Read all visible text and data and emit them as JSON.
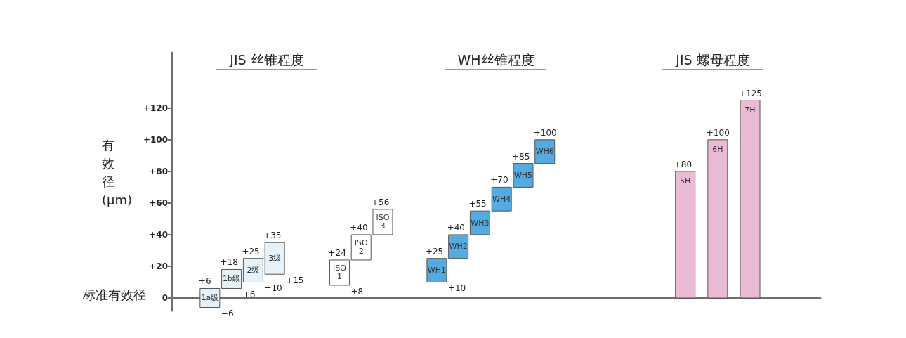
{
  "chart_data": {
    "type": "bar",
    "ylabel": "有效径\n(μm)",
    "categories": [
      null,
      null,
      null,
      "1a级",
      null,
      "1b级",
      null,
      "2级",
      null,
      "3级",
      null,
      null,
      null,
      null,
      null,
      "ISO\n1",
      null,
      "ISO\n2",
      null,
      "ISO\n3",
      null,
      null,
      null,
      null,
      "WH1",
      null,
      "WH2",
      null,
      "WH3",
      null,
      "WH4",
      null,
      "WH5",
      null,
      "WH6",
      null,
      null,
      null,
      null,
      null,
      null,
      null,
      null,
      null,
      null,
      null,
      null,
      "5H",
      null,
      null,
      "6H",
      null,
      null,
      "7H",
      null,
      null,
      null,
      null,
      null,
      null
    ],
    "values": [
      null,
      null,
      null,
      12,
      null,
      12,
      null,
      15,
      null,
      20,
      null,
      null,
      null,
      null,
      null,
      16,
      null,
      16,
      null,
      16,
      null,
      null,
      null,
      null,
      15,
      null,
      15,
      null,
      15,
      null,
      15,
      null,
      15,
      null,
      15,
      null,
      null,
      null,
      null,
      null,
      null,
      null,
      null,
      null,
      null,
      null,
      null,
      80,
      null,
      null,
      100,
      null,
      null,
      125,
      null,
      null,
      null,
      null,
      null,
      null
    ],
    "base": [
      null,
      null,
      null,
      -6,
      null,
      6,
      null,
      10,
      null,
      15,
      null,
      null,
      null,
      null,
      null,
      8,
      null,
      24,
      null,
      40,
      null,
      null,
      null,
      null,
      10,
      null,
      25,
      null,
      40,
      null,
      55,
      null,
      70,
      null,
      85,
      null,
      null,
      null,
      null,
      null,
      null,
      null,
      null,
      null,
      null,
      null,
      null,
      0,
      null,
      null,
      0,
      null,
      null,
      0,
      null,
      null,
      null,
      null,
      null,
      null
    ],
    "colors": [
      null,
      null,
      null,
      "#e6f2fa",
      null,
      "#e6f2fa",
      null,
      "#e6f2fa",
      null,
      "#e6f2fa",
      null,
      null,
      null,
      null,
      null,
      "#ffffff",
      null,
      "#ffffff",
      null,
      "#ffffff",
      null,
      null,
      null,
      null,
      "#55abe0",
      null,
      "#55abe0",
      null,
      "#55abe0",
      null,
      "#55abe0",
      null,
      "#55abe0",
      null,
      "#55abe0",
      null,
      null,
      null,
      null,
      null,
      null,
      null,
      null,
      null,
      null,
      null,
      null,
      "#ebbbd6",
      null,
      null,
      "#ebbbd6",
      null,
      null,
      "#ebbbd6",
      null,
      null,
      null,
      null,
      null,
      null
    ],
    "ylim": [
      -8,
      155
    ],
    "yticks": [
      0,
      {
        "value": 20,
        "label": "+20"
      },
      {
        "value": 40,
        "label": "+40"
      },
      {
        "value": 60,
        "label": "+60"
      },
      {
        "value": 80,
        "label": "+80"
      },
      {
        "value": 100,
        "label": "+100"
      },
      {
        "value": 120,
        "label": "+120"
      }
    ],
    "tick_labels": "y",
    "grid": false,
    "annotations": [
      "JIS 丝锥程度",
      "WH丝锥程度",
      "JIS 螺母程度",
      "标准有效径",
      {
        "text": "+6",
        "x": "1a级",
        "y": 6
      },
      {
        "text": "−6",
        "x": "1a级",
        "y": -6
      },
      {
        "text": "+18",
        "x": "1b级",
        "y": 18
      },
      {
        "text": "+6",
        "x": "1b级",
        "y": 6
      },
      {
        "text": "+25",
        "x": "2级",
        "y": 25
      },
      {
        "text": "+10",
        "x": "2级",
        "y": 10
      },
      {
        "text": "+35",
        "x": "3级",
        "y": 35
      },
      {
        "text": "+15",
        "x": "3级",
        "y": 15
      },
      {
        "text": "+24",
        "x": "ISO\n1",
        "y": 24
      },
      {
        "text": "+8",
        "x": "ISO\n1",
        "y": 8
      },
      {
        "text": "+40",
        "x": "ISO\n2",
        "y": 40
      },
      {
        "text": "+56",
        "x": "ISO\n3",
        "y": 56
      },
      {
        "text": "+25",
        "x": "WH1",
        "y": 25
      },
      {
        "text": "+10",
        "x": "WH1",
        "y": 10
      },
      {
        "text": "+40",
        "x": "WH2",
        "y": 40
      },
      {
        "text": "+55",
        "x": "WH3",
        "y": 55
      },
      {
        "text": "+70",
        "x": "WH4",
        "y": 70
      },
      {
        "text": "+85",
        "x": "WH5",
        "y": 85
      },
      {
        "text": "+100",
        "x": "WH6",
        "y": 100
      },
      {
        "text": "+80",
        "x": "5H",
        "y": 80
      },
      {
        "text": "+100",
        "x": "6H",
        "y": 100
      },
      {
        "text": "+125",
        "x": "7H",
        "y": 125
      }
    ]
  }
}
